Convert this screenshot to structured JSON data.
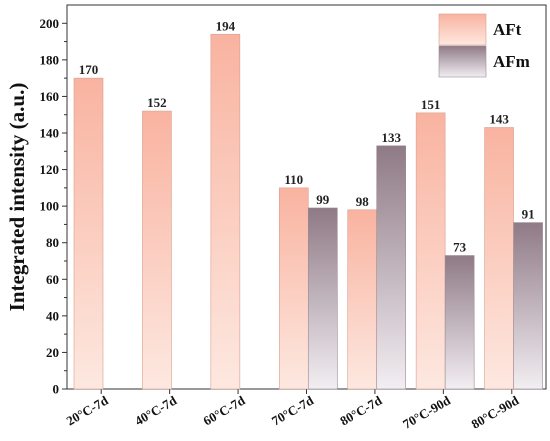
{
  "chart_data": {
    "type": "bar",
    "title": "",
    "xlabel": "",
    "ylabel": "Integrated intensity (a.u.)",
    "ylim": [
      0,
      210
    ],
    "yticks": [
      0,
      20,
      40,
      60,
      80,
      100,
      120,
      140,
      160,
      180,
      200
    ],
    "categories": [
      "20°C-7d",
      "40°C-7d",
      "60°C-7d",
      "70°C-7d",
      "80°C-7d",
      "70°C-90d",
      "80°C-90d"
    ],
    "series": [
      {
        "name": "AFt",
        "values": [
          170,
          152,
          194,
          110,
          98,
          151,
          143
        ],
        "labels": [
          "170",
          "152",
          "194",
          "110",
          "98",
          "151",
          "143"
        ],
        "color_top": "#f9b3a0",
        "color_bottom": "#fde8e0"
      },
      {
        "name": "AFm",
        "values": [
          null,
          null,
          null,
          99,
          133,
          73,
          91
        ],
        "labels": [
          "",
          "",
          "",
          "99",
          "133",
          "73",
          "91"
        ],
        "color_top": "#8f7a86",
        "color_bottom": "#f2eef2"
      }
    ],
    "legend_position": "top-right",
    "grid": false
  }
}
